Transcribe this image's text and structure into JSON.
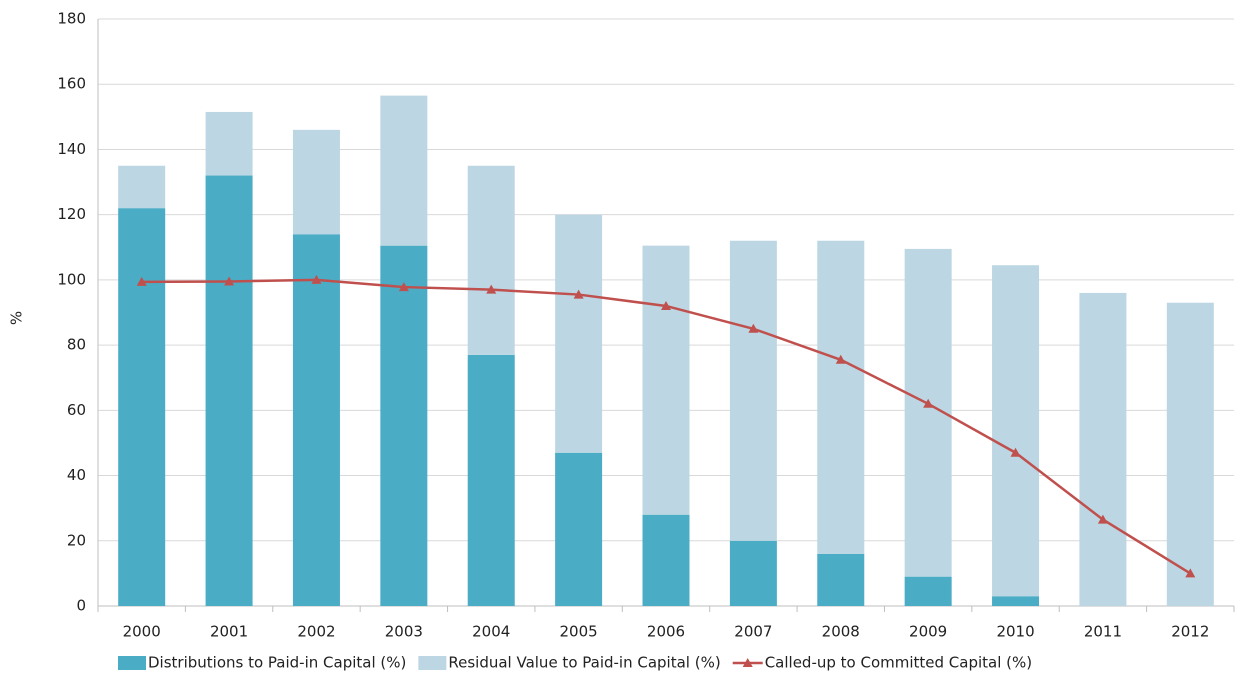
{
  "chart_data": {
    "type": "bar_line",
    "y_label": "%",
    "categories": [
      "2000",
      "2001",
      "2002",
      "2003",
      "2004",
      "2005",
      "2006",
      "2007",
      "2008",
      "2009",
      "2010",
      "2011",
      "2012"
    ],
    "series": [
      {
        "name": "Distributions to Paid-in Capital (%)",
        "type": "bar",
        "color": "#4bacc6",
        "values": [
          122,
          132,
          114,
          110.5,
          77,
          47,
          28,
          20,
          16,
          9,
          3,
          0,
          0
        ]
      },
      {
        "name": "Residual Value to Paid-in Capital (%)",
        "type": "bar",
        "color": "#bcd7e3",
        "values": [
          13,
          19.5,
          32,
          46,
          58,
          73,
          82.5,
          92,
          96,
          100.5,
          101.5,
          96,
          93
        ]
      },
      {
        "name": "Called-up to Committed Capital (%)",
        "type": "line",
        "color": "#c0504d",
        "values": [
          99.4,
          99.5,
          100,
          97.8,
          97,
          95.5,
          92,
          85,
          75.5,
          62,
          47,
          26.5,
          10
        ]
      }
    ],
    "ylim": [
      0,
      180
    ],
    "yticks": [
      0,
      20,
      40,
      60,
      80,
      100,
      120,
      140,
      160,
      180
    ],
    "grid": true,
    "legend": "bottom"
  }
}
